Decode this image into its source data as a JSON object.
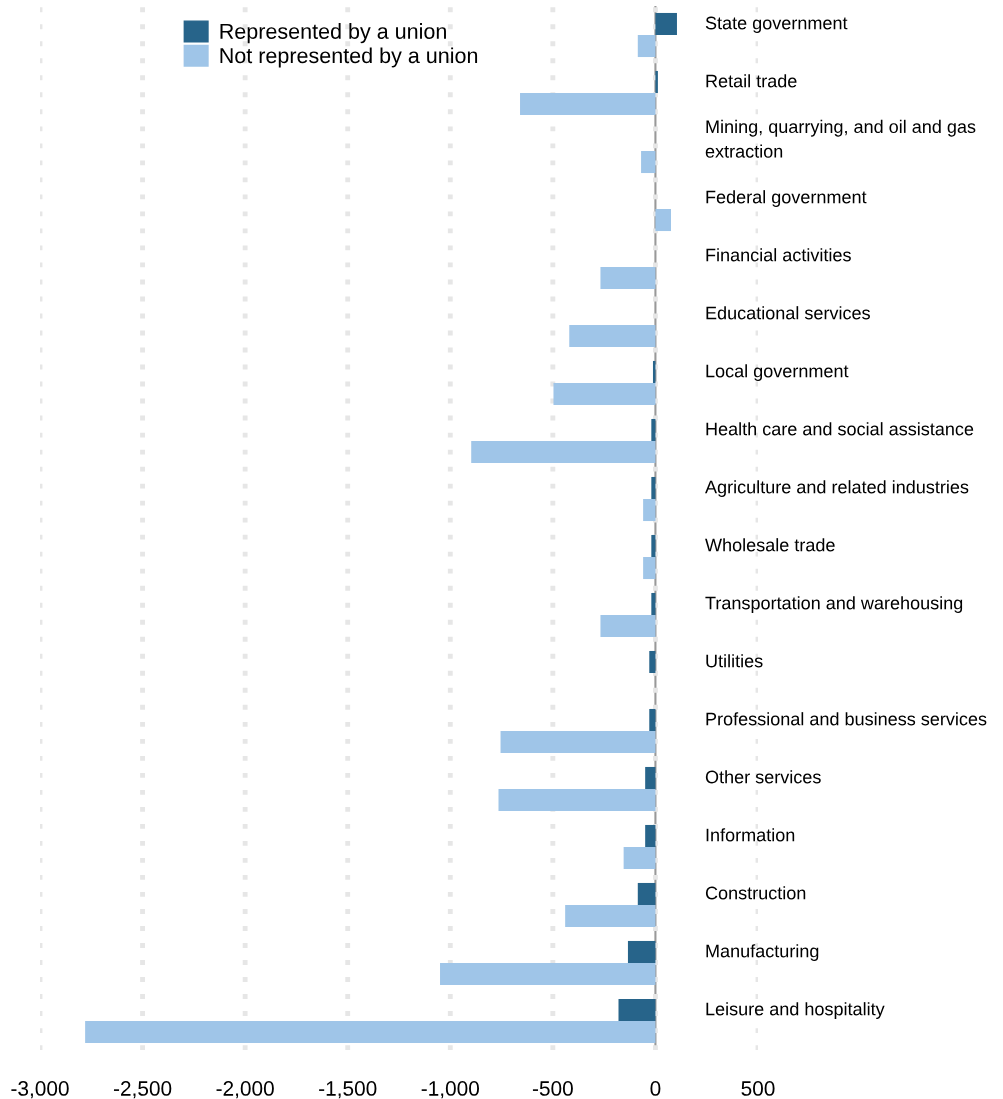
{
  "chart_data": {
    "type": "bar",
    "orientation": "horizontal",
    "categories": [
      "State government",
      "Retail trade",
      "Mining, quarrying, and oil and gas extraction",
      "Federal government",
      "Financial activities",
      "Educational services",
      "Local government",
      "Health care and social assistance",
      "Agriculture and related industries",
      "Wholesale trade",
      "Transportation and warehousing",
      "Utilities",
      "Professional and business services",
      "Other services",
      "Information",
      "Construction",
      "Manufacturing",
      "Leisure and hospitality"
    ],
    "series": [
      {
        "name": "Represented by a union",
        "color": "#27648a",
        "values": [
          105,
          12,
          null,
          null,
          0,
          0,
          -12,
          -20,
          -20,
          -20,
          -20,
          -30,
          -30,
          -50,
          -50,
          -86,
          -134,
          -180
        ]
      },
      {
        "name": "Not represented by a union",
        "color": "#9fc5e8",
        "values": [
          -86,
          -660,
          -70,
          76,
          -268,
          -420,
          -497,
          -898,
          -60,
          -60,
          -268,
          0,
          -755,
          -765,
          -155,
          -440,
          -1050,
          -2780
        ]
      }
    ],
    "xlim": [
      -3000,
      500
    ],
    "xticks": [
      {
        "value": -3000,
        "label": "-3,000"
      },
      {
        "value": -2500,
        "label": "-2,500"
      },
      {
        "value": -2000,
        "label": "-2,000"
      },
      {
        "value": -1500,
        "label": "-1,500"
      },
      {
        "value": -1000,
        "label": "-1,000"
      },
      {
        "value": -500,
        "label": "-500"
      },
      {
        "value": 0,
        "label": "0"
      },
      {
        "value": 500,
        "label": "500"
      }
    ],
    "grid": "x",
    "legend": "top left",
    "ref_lines": [
      {
        "axis": "x",
        "value": 0,
        "color": "#999999"
      }
    ]
  }
}
